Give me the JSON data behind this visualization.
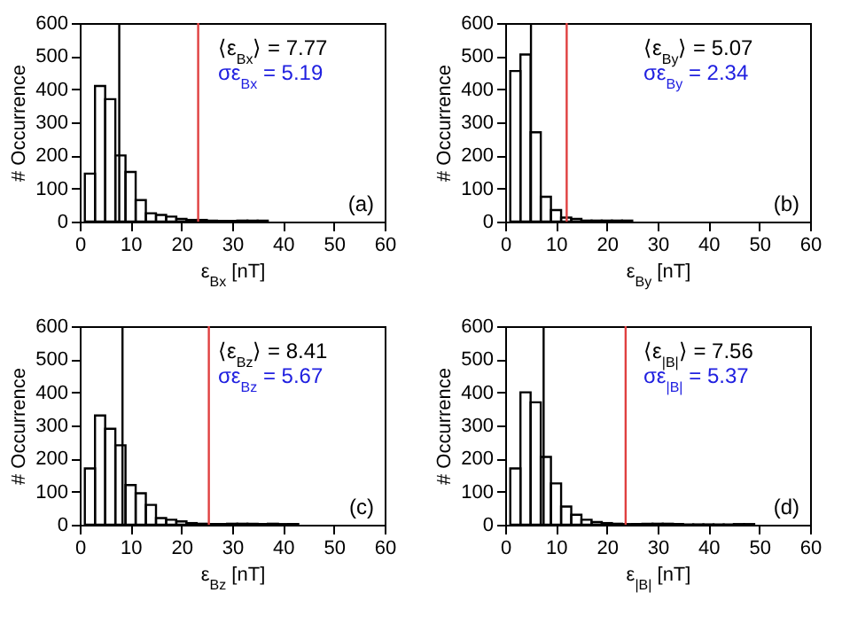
{
  "chart_data": [
    {
      "type": "histogram",
      "color": "#000000",
      "xlabel": "ε$_{Bx}$ [nT]",
      "ylabel": "# Occurrence",
      "xlim": [
        0,
        60
      ],
      "xticks": [
        0,
        10,
        20,
        30,
        40,
        50,
        60
      ],
      "ylim": [
        0,
        600
      ],
      "yticks": [
        0,
        100,
        200,
        300,
        400,
        500,
        600
      ],
      "bins": [
        1,
        3,
        5,
        7,
        9,
        11,
        13,
        15,
        17,
        19,
        21,
        23,
        25,
        27,
        29,
        31,
        33,
        35,
        37
      ],
      "values": [
        145,
        410,
        370,
        200,
        150,
        65,
        25,
        20,
        15,
        8,
        5,
        5,
        3,
        2,
        2,
        3,
        3,
        3
      ],
      "ref_lines": [
        {
          "axis": "x",
          "value": 7.77,
          "color": "#000000"
        },
        {
          "axis": "x",
          "value": 23.3,
          "color": "#e04040"
        }
      ],
      "annotations": [
        "⟨ε$_{Bx}$⟩ =   7.77",
        "σε$_{Bx}$  =   5.19",
        "(a)"
      ]
    },
    {
      "type": "histogram",
      "color": "#000000",
      "xlabel": "ε$_{By}$ [nT]",
      "ylabel": "# Occurrence",
      "xlim": [
        0,
        60
      ],
      "xticks": [
        0,
        10,
        20,
        30,
        40,
        50,
        60
      ],
      "ylim": [
        0,
        600
      ],
      "yticks": [
        0,
        100,
        200,
        300,
        400,
        500,
        600
      ],
      "bins": [
        1,
        3,
        5,
        7,
        9,
        11,
        13,
        15,
        17,
        19,
        21,
        23,
        25
      ],
      "values": [
        455,
        505,
        270,
        75,
        35,
        12,
        8,
        3,
        3,
        3,
        3,
        3
      ],
      "ref_lines": [
        {
          "axis": "x",
          "value": 5.07,
          "color": "#000000"
        },
        {
          "axis": "x",
          "value": 12.1,
          "color": "#e04040"
        }
      ],
      "annotations": [
        "⟨ε$_{By}$⟩ =   5.07",
        "σε$_{By}$  =   2.34",
        "(b)"
      ]
    },
    {
      "type": "histogram",
      "color": "#000000",
      "xlabel": "ε$_{Bz}$ [nT]",
      "ylabel": "# Occurrence",
      "xlim": [
        0,
        60
      ],
      "xticks": [
        0,
        10,
        20,
        30,
        40,
        50,
        60
      ],
      "ylim": [
        0,
        600
      ],
      "yticks": [
        0,
        100,
        200,
        300,
        400,
        500,
        600
      ],
      "bins": [
        1,
        3,
        5,
        7,
        9,
        11,
        13,
        15,
        17,
        19,
        21,
        23,
        25,
        27,
        29,
        31,
        33,
        35,
        37,
        39,
        41,
        43
      ],
      "values": [
        170,
        330,
        290,
        240,
        120,
        95,
        60,
        20,
        15,
        10,
        5,
        3,
        2,
        2,
        3,
        3,
        3,
        2,
        3,
        2,
        2
      ],
      "ref_lines": [
        {
          "axis": "x",
          "value": 8.41,
          "color": "#000000"
        },
        {
          "axis": "x",
          "value": 25.4,
          "color": "#e04040"
        }
      ],
      "annotations": [
        "⟨ε$_{Bz}$⟩ =   8.41",
        "σε$_{Bz}$  =   5.67",
        "(c)"
      ]
    },
    {
      "type": "histogram",
      "color": "#000000",
      "xlabel": "ε$_{|B|}$ [nT]",
      "ylabel": "# Occurrence",
      "xlim": [
        0,
        60
      ],
      "xticks": [
        0,
        10,
        20,
        30,
        40,
        50,
        60
      ],
      "ylim": [
        0,
        600
      ],
      "yticks": [
        0,
        100,
        200,
        300,
        400,
        500,
        600
      ],
      "bins": [
        1,
        3,
        5,
        7,
        9,
        11,
        13,
        15,
        17,
        19,
        21,
        23,
        25,
        27,
        29,
        31,
        33,
        35,
        37,
        39,
        41,
        43,
        45,
        47,
        49
      ],
      "values": [
        170,
        400,
        370,
        205,
        125,
        55,
        30,
        15,
        8,
        5,
        3,
        2,
        2,
        3,
        3,
        3,
        2,
        1,
        1,
        1,
        1,
        1,
        2,
        2
      ],
      "ref_lines": [
        {
          "axis": "x",
          "value": 7.56,
          "color": "#000000"
        },
        {
          "axis": "x",
          "value": 23.7,
          "color": "#e04040"
        }
      ],
      "annotations": [
        "⟨ε$_{|B|}$⟩ =   7.56",
        "σε$_{|B|}$  =   5.37",
        "(d)"
      ]
    }
  ]
}
